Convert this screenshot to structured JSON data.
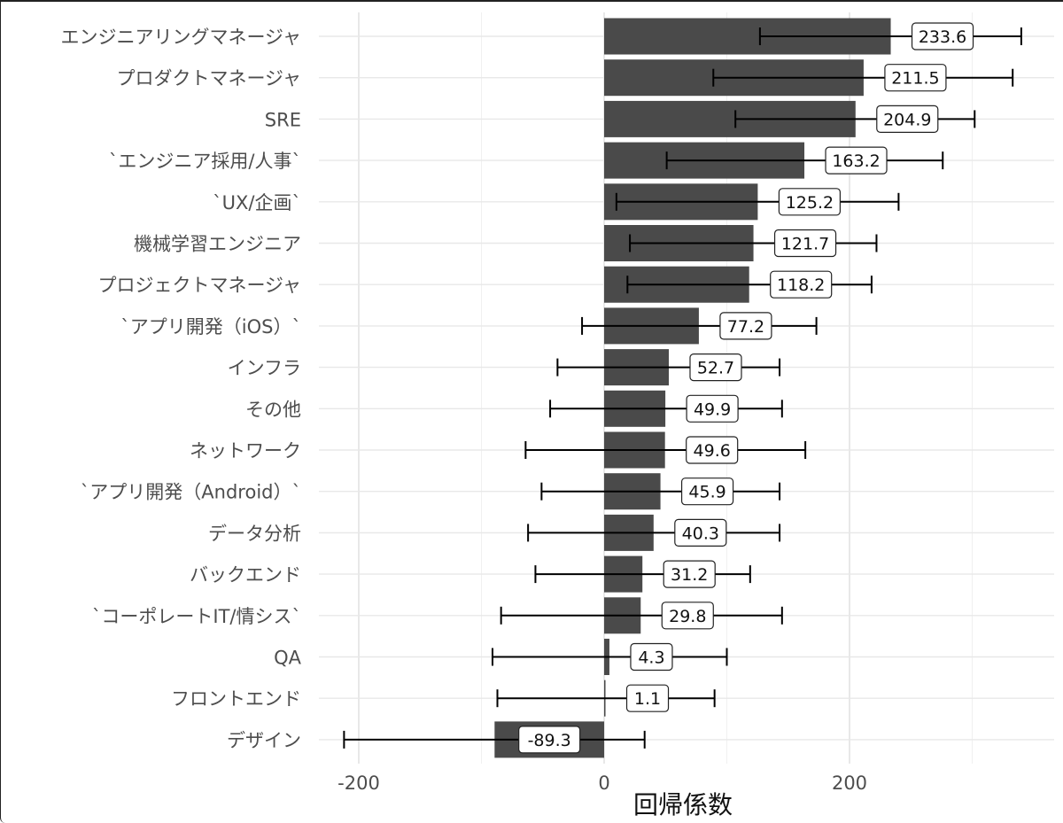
{
  "chart_data": {
    "type": "bar",
    "orientation": "horizontal",
    "xlabel": "回帰係数",
    "ylabel": "",
    "xlim": [
      -232,
      372
    ],
    "x_ticks": [
      -200,
      0,
      200
    ],
    "x_tick_labels": [
      "-200",
      "0",
      "200"
    ],
    "grid": true,
    "bar_color": "#4a4a4a",
    "categories": [
      "エンジニアリングマネージャ",
      "プロダクトマネージャ",
      "SRE",
      "`エンジニア採用/人事`",
      "`UX/企画`",
      "機械学習エンジニア",
      "プロジェクトマネージャ",
      "`アプリ開発（iOS）`",
      "インフラ",
      "その他",
      "ネットワーク",
      "`アプリ開発（Android）`",
      "データ分析",
      "バックエンド",
      "`コーポレートIT/情シス`",
      "QA",
      "フロントエンド",
      "デザイン"
    ],
    "values": [
      233.6,
      211.5,
      204.9,
      163.2,
      125.2,
      121.7,
      118.2,
      77.2,
      52.7,
      49.9,
      49.6,
      45.9,
      40.3,
      31.2,
      29.8,
      4.3,
      1.1,
      -89.3
    ],
    "value_labels": [
      "233.6",
      "211.5",
      "204.9",
      "163.2",
      "125.2",
      "121.7",
      "118.2",
      "77.2",
      "52.7",
      "49.9",
      "49.6",
      "45.9",
      "40.3",
      "31.2",
      "29.8",
      "4.3",
      "1.1",
      "-89.3"
    ],
    "ci_low": [
      127,
      89,
      107,
      51,
      10,
      21,
      19,
      -18,
      -38,
      -44,
      -64,
      -51,
      -62,
      -56,
      -84,
      -91,
      -87,
      -212
    ],
    "ci_high": [
      340,
      333,
      302,
      276,
      240,
      222,
      218,
      173,
      143,
      145,
      164,
      143,
      143,
      119,
      145,
      100,
      90,
      33
    ]
  }
}
